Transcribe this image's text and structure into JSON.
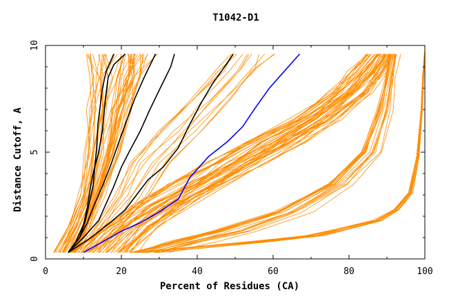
{
  "chart_data": {
    "type": "line",
    "title": "T1042-D1",
    "xlabel": "Percent of Residues (CA)",
    "ylabel": "Distance Cutoff, A",
    "xlim": [
      0,
      100
    ],
    "ylim": [
      0,
      10
    ],
    "x_ticks": [
      "0",
      "20",
      "40",
      "60",
      "80",
      "100"
    ],
    "x_tick_values": [
      0,
      20,
      40,
      60,
      80,
      100
    ],
    "y_ticks": [
      "0",
      "5",
      "10"
    ],
    "y_tick_values": [
      0,
      5,
      10
    ],
    "grid": false,
    "background_color": "#ffffff",
    "bundles": [
      {
        "color": "#ff8c00",
        "count": 45,
        "points": [
          [
            5.5,
            0.3
          ],
          [
            9,
            1.5
          ],
          [
            12.5,
            3
          ],
          [
            15,
            5
          ],
          [
            17,
            7
          ],
          [
            18.5,
            8.5
          ],
          [
            20,
            9.6
          ]
        ],
        "spread": [
          3,
          3,
          3.5,
          4.5,
          6,
          7,
          9
        ]
      },
      {
        "color": "#ff8c00",
        "count": 45,
        "points": [
          [
            15,
            0.3
          ],
          [
            22,
            1.5
          ],
          [
            30,
            2.5
          ],
          [
            40,
            3.5
          ],
          [
            50,
            4.5
          ],
          [
            60,
            5.5
          ],
          [
            70,
            6.5
          ],
          [
            80,
            7.8
          ],
          [
            85,
            8.8
          ],
          [
            88,
            9.6
          ]
        ],
        "spread": [
          9,
          8,
          8,
          8,
          8,
          8,
          7,
          6,
          5,
          4
        ]
      },
      {
        "color": "#ff8c00",
        "count": 18,
        "points": [
          [
            28,
            0.3
          ],
          [
            38,
            0.8
          ],
          [
            50,
            1.3
          ],
          [
            65,
            2.2
          ],
          [
            78,
            3.5
          ],
          [
            86,
            5
          ],
          [
            89.5,
            7
          ],
          [
            91,
            8.5
          ],
          [
            92,
            9.6
          ]
        ],
        "spread": [
          6,
          6,
          6,
          5,
          4,
          3,
          2,
          1.5,
          1.5
        ]
      },
      {
        "color": "#ff8c00",
        "count": 12,
        "points": [
          [
            25,
            0.3
          ],
          [
            55,
            0.8
          ],
          [
            70,
            1.1
          ],
          [
            80,
            1.5
          ],
          [
            87,
            1.8
          ],
          [
            92,
            2.3
          ],
          [
            96,
            3.1
          ],
          [
            98,
            4.8
          ],
          [
            99,
            7
          ],
          [
            99.5,
            8.6
          ],
          [
            100,
            9.7
          ]
        ],
        "spread": [
          5,
          5,
          4,
          3,
          2,
          1.5,
          1,
          0.5,
          0.4,
          0.3,
          0.3
        ]
      },
      {
        "color": "#ff8c00",
        "count": 12,
        "points": [
          [
            12,
            0.3
          ],
          [
            18,
            1.5
          ],
          [
            24,
            3
          ],
          [
            30,
            4.5
          ],
          [
            37,
            6
          ],
          [
            45,
            7.5
          ],
          [
            52,
            8.8
          ],
          [
            56,
            9.6
          ]
        ],
        "spread": [
          4,
          5,
          6,
          7,
          7,
          6,
          6,
          6
        ]
      }
    ],
    "series": [
      {
        "color": "#000000",
        "values": [
          [
            6,
            0.3
          ],
          [
            8,
            0.8
          ],
          [
            10,
            1.6
          ],
          [
            11,
            2.4
          ],
          [
            11.5,
            3
          ],
          [
            12.5,
            4
          ],
          [
            14,
            5
          ],
          [
            15,
            6
          ],
          [
            15.8,
            7.5
          ],
          [
            16.5,
            8.5
          ],
          [
            18,
            9.1
          ],
          [
            21,
            9.6
          ]
        ]
      },
      {
        "color": "#000000",
        "values": [
          [
            6,
            0.3
          ],
          [
            9,
            1
          ],
          [
            10.5,
            1.8
          ],
          [
            11.5,
            2.6
          ],
          [
            12.5,
            3.4
          ],
          [
            13,
            4.3
          ],
          [
            13.5,
            5.3
          ],
          [
            13.8,
            6.3
          ],
          [
            14.5,
            7.3
          ],
          [
            15,
            8
          ],
          [
            16,
            8.8
          ],
          [
            18,
            9.6
          ]
        ]
      },
      {
        "color": "#000000",
        "values": [
          [
            6,
            0.3
          ],
          [
            9,
            1
          ],
          [
            11,
            1.7
          ],
          [
            13,
            2.6
          ],
          [
            15,
            3.4
          ],
          [
            17,
            4.3
          ],
          [
            19,
            5.3
          ],
          [
            21,
            6.3
          ],
          [
            23.5,
            7.5
          ],
          [
            26,
            8.5
          ],
          [
            29,
            9.6
          ]
        ]
      },
      {
        "color": "#000000",
        "values": [
          [
            6,
            0.3
          ],
          [
            10,
            1
          ],
          [
            14,
            1.8
          ],
          [
            16,
            2.6
          ],
          [
            18,
            3.4
          ],
          [
            20,
            4.3
          ],
          [
            22,
            5
          ],
          [
            25,
            6
          ],
          [
            27.5,
            7
          ],
          [
            30.5,
            8.1
          ],
          [
            33,
            9
          ],
          [
            34,
            9.6
          ]
        ]
      },
      {
        "color": "#000000",
        "values": [
          [
            6,
            0.3
          ],
          [
            12,
            1
          ],
          [
            17,
            1.7
          ],
          [
            21,
            2.3
          ],
          [
            24,
            3
          ],
          [
            27,
            3.7
          ],
          [
            31,
            4.3
          ],
          [
            35,
            5.2
          ],
          [
            38,
            6.3
          ],
          [
            41,
            7.3
          ],
          [
            44,
            8.2
          ],
          [
            48,
            9.2
          ],
          [
            49.5,
            9.6
          ]
        ]
      },
      {
        "color": "#0000ff",
        "values": [
          [
            10,
            0.3
          ],
          [
            15,
            0.8
          ],
          [
            20,
            1.3
          ],
          [
            25,
            1.7
          ],
          [
            30,
            2.2
          ],
          [
            35,
            2.8
          ],
          [
            38,
            3.8
          ],
          [
            43,
            4.8
          ],
          [
            48,
            5.5
          ],
          [
            52,
            6.2
          ],
          [
            55,
            7
          ],
          [
            59,
            8
          ],
          [
            63,
            8.8
          ],
          [
            67,
            9.6
          ]
        ]
      }
    ]
  }
}
